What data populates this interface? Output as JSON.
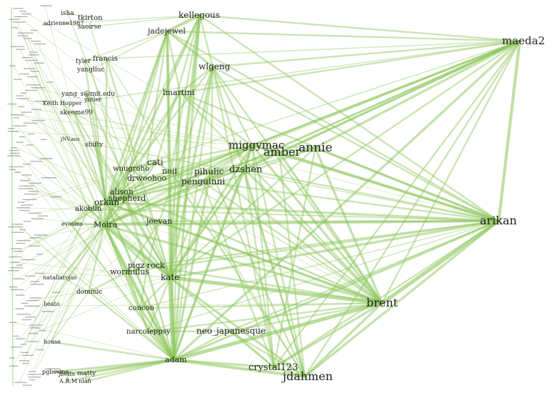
{
  "colors": {
    "edge": "#8cc65a",
    "label": "#222222",
    "minor_label": "#555555"
  },
  "nodes": [
    {
      "id": "maeda2",
      "label": "maeda2"
    },
    {
      "id": "arikan",
      "label": "arikan"
    },
    {
      "id": "brent",
      "label": "brent"
    },
    {
      "id": "kellegous",
      "label": "kellegous"
    },
    {
      "id": "jadejewel",
      "label": "jadejewel"
    },
    {
      "id": "wlgeng",
      "label": "wlgeng"
    },
    {
      "id": "lmartini",
      "label": "lmartini"
    },
    {
      "id": "miggymac",
      "label": "miggymac"
    },
    {
      "id": "amber",
      "label": "amber"
    },
    {
      "id": "annie",
      "label": "annie"
    },
    {
      "id": "dzshen",
      "label": "dzshen"
    },
    {
      "id": "pihulic",
      "label": "pihulic"
    },
    {
      "id": "penguinni",
      "label": "penguinni"
    },
    {
      "id": "cati",
      "label": "cati"
    },
    {
      "id": "noii",
      "label": "noii"
    },
    {
      "id": "wnugroho",
      "label": "wnugroho"
    },
    {
      "id": "drwoohoo",
      "label": "drwoohoo"
    },
    {
      "id": "alison",
      "label": "alison"
    },
    {
      "id": "shepherd",
      "label": "shepherd"
    },
    {
      "id": "orkan",
      "label": "orkan"
    },
    {
      "id": "akoblin",
      "label": "akoblin"
    },
    {
      "id": "evesms",
      "label": "evesms"
    },
    {
      "id": "moira",
      "label": "Moira"
    },
    {
      "id": "jeevan",
      "label": "jeevan"
    },
    {
      "id": "pigzrock",
      "label": "pigz rock"
    },
    {
      "id": "wormulus",
      "label": "wormulus"
    },
    {
      "id": "kate",
      "label": "kate"
    },
    {
      "id": "nataliarojas",
      "label": "nataliarojas"
    },
    {
      "id": "dominic",
      "label": "dominic"
    },
    {
      "id": "beato",
      "label": "beato"
    },
    {
      "id": "concon",
      "label": "concon"
    },
    {
      "id": "narcoleppsy",
      "label": "narcoleppsy"
    },
    {
      "id": "neojapanesque",
      "label": "neo_japanesque"
    },
    {
      "id": "house",
      "label": "house"
    },
    {
      "id": "adam",
      "label": "adam"
    },
    {
      "id": "crystal123",
      "label": "crystal123"
    },
    {
      "id": "jdahmen",
      "label": "jdahmen"
    },
    {
      "id": "pgbovine",
      "label": "pgbovine"
    },
    {
      "id": "jbetts",
      "label": "jbetts"
    },
    {
      "id": "matty",
      "label": "matty"
    },
    {
      "id": "arm",
      "label": "A.R.M"
    },
    {
      "id": "nlafi",
      "label": "nlafi"
    },
    {
      "id": "isha",
      "label": "isha"
    },
    {
      "id": "tkirton",
      "label": "tkirton"
    },
    {
      "id": "adrienne1987",
      "label": "adrienne1987"
    },
    {
      "id": "saoirse",
      "label": "saoirse"
    },
    {
      "id": "francis",
      "label": "francis"
    },
    {
      "id": "tyler",
      "label": "tyler"
    },
    {
      "id": "yangliuc",
      "label": "yangliuc"
    },
    {
      "id": "yangsmit",
      "label": "yang_s@mit.edu"
    },
    {
      "id": "yntler",
      "label": "yntler"
    },
    {
      "id": "keithhopper",
      "label": "Keith Hopper"
    },
    {
      "id": "skeeme99",
      "label": "skeeme99"
    },
    {
      "id": "shifty",
      "label": "shifty"
    },
    {
      "id": "jnvaus",
      "label": "jNV.aus"
    }
  ],
  "edges": [
    [
      "maeda2",
      "arikan",
      4
    ],
    [
      "maeda2",
      "brent",
      2
    ],
    [
      "maeda2",
      "kellegous",
      2
    ],
    [
      "maeda2",
      "jadejewel",
      2
    ],
    [
      "maeda2",
      "wlgeng",
      2
    ],
    [
      "maeda2",
      "miggymac",
      3
    ],
    [
      "maeda2",
      "amber",
      3
    ],
    [
      "maeda2",
      "annie",
      3
    ],
    [
      "maeda2",
      "dzshen",
      2
    ],
    [
      "maeda2",
      "adam",
      3
    ],
    [
      "maeda2",
      "kate",
      2
    ],
    [
      "maeda2",
      "moira",
      2
    ],
    [
      "maeda2",
      "lmartini",
      2
    ],
    [
      "maeda2",
      "orkan",
      2
    ],
    [
      "maeda2",
      "jdahmen",
      2
    ],
    [
      "maeda2",
      "crystal123",
      2
    ],
    [
      "maeda2",
      "penguinni",
      2
    ],
    [
      "maeda2",
      "wnugroho",
      1
    ],
    [
      "maeda2",
      "francis",
      1
    ],
    [
      "maeda2",
      "shepherd",
      1
    ],
    [
      "arikan",
      "brent",
      5
    ],
    [
      "arikan",
      "adam",
      3
    ],
    [
      "arikan",
      "kate",
      3
    ],
    [
      "arikan",
      "miggymac",
      3
    ],
    [
      "arikan",
      "amber",
      3
    ],
    [
      "arikan",
      "annie",
      3
    ],
    [
      "arikan",
      "dzshen",
      2
    ],
    [
      "arikan",
      "moira",
      3
    ],
    [
      "arikan",
      "orkan",
      3
    ],
    [
      "arikan",
      "jeevan",
      2
    ],
    [
      "arikan",
      "pigzrock",
      2
    ],
    [
      "arikan",
      "jdahmen",
      3
    ],
    [
      "arikan",
      "crystal123",
      2
    ],
    [
      "arikan",
      "penguinni",
      2
    ],
    [
      "arikan",
      "wlgeng",
      2
    ],
    [
      "arikan",
      "kellegous",
      2
    ],
    [
      "arikan",
      "jadejewel",
      2
    ],
    [
      "arikan",
      "lmartini",
      2
    ],
    [
      "arikan",
      "neojapanesque",
      2
    ],
    [
      "arikan",
      "evesms",
      1
    ],
    [
      "arikan",
      "akoblin",
      1
    ],
    [
      "arikan",
      "wormulus",
      2
    ],
    [
      "arikan",
      "concon",
      1
    ],
    [
      "arikan",
      "narcoleppsy",
      1
    ],
    [
      "brent",
      "adam",
      5
    ],
    [
      "brent",
      "kate",
      5
    ],
    [
      "brent",
      "miggymac",
      3
    ],
    [
      "brent",
      "amber",
      3
    ],
    [
      "brent",
      "annie",
      3
    ],
    [
      "brent",
      "dzshen",
      3
    ],
    [
      "brent",
      "moira",
      3
    ],
    [
      "brent",
      "orkan",
      3
    ],
    [
      "brent",
      "jdahmen",
      3
    ],
    [
      "brent",
      "crystal123",
      3
    ],
    [
      "brent",
      "neojapanesque",
      2
    ],
    [
      "brent",
      "jeevan",
      2
    ],
    [
      "brent",
      "pihulic",
      2
    ],
    [
      "brent",
      "penguinni",
      2
    ],
    [
      "brent",
      "narcoleppsy",
      2
    ],
    [
      "brent",
      "alison",
      2
    ],
    [
      "brent",
      "wlgeng",
      2
    ],
    [
      "brent",
      "lmartini",
      2
    ],
    [
      "brent",
      "concon",
      2
    ],
    [
      "brent",
      "pigzrock",
      2
    ],
    [
      "adam",
      "kate",
      6
    ],
    [
      "adam",
      "moira",
      4
    ],
    [
      "adam",
      "jdahmen",
      4
    ],
    [
      "adam",
      "crystal123",
      3
    ],
    [
      "adam",
      "matty",
      3
    ],
    [
      "adam",
      "pgbovine",
      3
    ],
    [
      "adam",
      "jbetts",
      2
    ],
    [
      "adam",
      "arm",
      2
    ],
    [
      "adam",
      "nlafi",
      2
    ],
    [
      "adam",
      "narcoleppsy",
      3
    ],
    [
      "adam",
      "concon",
      3
    ],
    [
      "adam",
      "kellegous",
      3
    ],
    [
      "adam",
      "jadejewel",
      3
    ],
    [
      "adam",
      "wlgeng",
      2
    ],
    [
      "adam",
      "miggymac",
      3
    ],
    [
      "adam",
      "dzshen",
      2
    ],
    [
      "adam",
      "pihulic",
      3
    ],
    [
      "adam",
      "orkan",
      3
    ],
    [
      "adam",
      "shepherd",
      2
    ],
    [
      "adam",
      "house",
      2
    ],
    [
      "adam",
      "dominic",
      2
    ],
    [
      "adam",
      "wormulus",
      2
    ],
    [
      "adam",
      "neojapanesque",
      2
    ],
    [
      "adam",
      "evesms",
      2
    ],
    [
      "kate",
      "moira",
      4
    ],
    [
      "kate",
      "orkan",
      3
    ],
    [
      "kate",
      "kellegous",
      4
    ],
    [
      "kate",
      "jadejewel",
      3
    ],
    [
      "kate",
      "wlgeng",
      3
    ],
    [
      "kate",
      "lmartini",
      3
    ],
    [
      "kate",
      "miggymac",
      3
    ],
    [
      "kate",
      "annie",
      2
    ],
    [
      "kate",
      "dzshen",
      2
    ],
    [
      "kate",
      "pihulic",
      2
    ],
    [
      "kate",
      "jdahmen",
      3
    ],
    [
      "kate",
      "crystal123",
      2
    ],
    [
      "kate",
      "concon",
      2
    ],
    [
      "kate",
      "narcoleppsy",
      2
    ],
    [
      "kate",
      "akoblin",
      2
    ],
    [
      "kate",
      "shifty",
      2
    ],
    [
      "kate",
      "francis",
      2
    ],
    [
      "kate",
      "yangsmit",
      2
    ],
    [
      "kate",
      "skeeme99",
      2
    ],
    [
      "kellegous",
      "jadejewel",
      4
    ],
    [
      "kellegous",
      "moira",
      3
    ],
    [
      "kellegous",
      "orkan",
      2
    ],
    [
      "kellegous",
      "cati",
      2
    ],
    [
      "kellegous",
      "adrienne1987",
      1
    ],
    [
      "kellegous",
      "saoirse",
      1
    ],
    [
      "kellegous",
      "wlgeng",
      2
    ],
    [
      "kellegous",
      "noii",
      2
    ],
    [
      "jadejewel",
      "wlgeng",
      3
    ],
    [
      "jadejewel",
      "orkan",
      3
    ],
    [
      "jadejewel",
      "moira",
      2
    ],
    [
      "jadejewel",
      "alison",
      2
    ],
    [
      "jadejewel",
      "lmartini",
      2
    ],
    [
      "jadejewel",
      "drwoohoo",
      2
    ],
    [
      "jadejewel",
      "tyler",
      1
    ],
    [
      "jadejewel",
      "yangliuc",
      1
    ],
    [
      "wlgeng",
      "orkan",
      2
    ],
    [
      "wlgeng",
      "miggymac",
      2
    ],
    [
      "wlgeng",
      "lmartini",
      2
    ],
    [
      "wlgeng",
      "pihulic",
      2
    ],
    [
      "wlgeng",
      "jdahmen",
      2
    ],
    [
      "wlgeng",
      "crystal123",
      2
    ],
    [
      "wlgeng",
      "jeevan",
      2
    ],
    [
      "lmartini",
      "orkan",
      2
    ],
    [
      "lmartini",
      "miggymac",
      2
    ],
    [
      "lmartini",
      "adam",
      2
    ],
    [
      "lmartini",
      "moira",
      2
    ],
    [
      "miggymac",
      "amber",
      3
    ],
    [
      "miggymac",
      "annie",
      2
    ],
    [
      "miggymac",
      "dzshen",
      3
    ],
    [
      "miggymac",
      "pihulic",
      2
    ],
    [
      "miggymac",
      "penguinni",
      2
    ],
    [
      "miggymac",
      "orkan",
      2
    ],
    [
      "miggymac",
      "moira",
      2
    ],
    [
      "miggymac",
      "jdahmen",
      2
    ],
    [
      "miggymac",
      "crystal123",
      2
    ],
    [
      "miggymac",
      "alison",
      2
    ],
    [
      "miggymac",
      "wnugroho",
      2
    ],
    [
      "miggymac",
      "noii",
      2
    ],
    [
      "amber",
      "annie",
      3
    ],
    [
      "amber",
      "dzshen",
      2
    ],
    [
      "amber",
      "jdahmen",
      2
    ],
    [
      "amber",
      "moira",
      2
    ],
    [
      "amber",
      "orkan",
      2
    ],
    [
      "annie",
      "dzshen",
      2
    ],
    [
      "annie",
      "crystal123",
      2
    ],
    [
      "annie",
      "moira",
      2
    ],
    [
      "dzshen",
      "pihulic",
      2
    ],
    [
      "dzshen",
      "penguinni",
      2
    ],
    [
      "dzshen",
      "jdahmen",
      2
    ],
    [
      "dzshen",
      "crystal123",
      2
    ],
    [
      "dzshen",
      "orkan",
      2
    ],
    [
      "dzshen",
      "kate",
      2
    ],
    [
      "pihulic",
      "penguinni",
      2
    ],
    [
      "pihulic",
      "orkan",
      2
    ],
    [
      "pihulic",
      "jdahmen",
      2
    ],
    [
      "pihulic",
      "drwoohoo",
      2
    ],
    [
      "penguinni",
      "crystal123",
      2
    ],
    [
      "penguinni",
      "moira",
      2
    ],
    [
      "penguinni",
      "orkan",
      2
    ],
    [
      "cati",
      "noii",
      2
    ],
    [
      "cati",
      "wnugroho",
      2
    ],
    [
      "cati",
      "drwoohoo",
      2
    ],
    [
      "cati",
      "orkan",
      2
    ],
    [
      "noii",
      "drwoohoo",
      2
    ],
    [
      "noii",
      "alison",
      2
    ],
    [
      "noii",
      "jdahmen",
      2
    ],
    [
      "wnugroho",
      "drwoohoo",
      2
    ],
    [
      "wnugroho",
      "alison",
      2
    ],
    [
      "wnugroho",
      "orkan",
      2
    ],
    [
      "drwoohoo",
      "alison",
      2
    ],
    [
      "drwoohoo",
      "moira",
      2
    ],
    [
      "alison",
      "shepherd",
      3
    ],
    [
      "alison",
      "orkan",
      2
    ],
    [
      "alison",
      "moira",
      2
    ],
    [
      "shepherd",
      "orkan",
      3
    ],
    [
      "shepherd",
      "moira",
      2
    ],
    [
      "shepherd",
      "akoblin",
      2
    ],
    [
      "orkan",
      "akoblin",
      2
    ],
    [
      "orkan",
      "moira",
      3
    ],
    [
      "orkan",
      "jeevan",
      2
    ],
    [
      "orkan",
      "evesms",
      2
    ],
    [
      "orkan",
      "tyler",
      2
    ],
    [
      "orkan",
      "francis",
      2
    ],
    [
      "orkan",
      "yangsmit",
      2
    ],
    [
      "orkan",
      "yntler",
      2
    ],
    [
      "orkan",
      "keithhopper",
      1
    ],
    [
      "orkan",
      "skeeme99",
      2
    ],
    [
      "orkan",
      "shifty",
      2
    ],
    [
      "orkan",
      "jnvaus",
      1
    ],
    [
      "akoblin",
      "evesms",
      2
    ],
    [
      "akoblin",
      "moira",
      2
    ],
    [
      "moira",
      "evesms",
      2
    ],
    [
      "moira",
      "jeevan",
      2
    ],
    [
      "moira",
      "pigzrock",
      3
    ],
    [
      "moira",
      "wormulus",
      3
    ],
    [
      "moira",
      "dominic",
      2
    ],
    [
      "moira",
      "nataliarojas",
      2
    ],
    [
      "moira",
      "concon",
      2
    ],
    [
      "moira",
      "narcoleppsy",
      2
    ],
    [
      "moira",
      "beato",
      1
    ],
    [
      "moira",
      "house",
      1
    ],
    [
      "jeevan",
      "pigzrock",
      2
    ],
    [
      "jeevan",
      "wormulus",
      2
    ],
    [
      "pigzrock",
      "wormulus",
      3
    ],
    [
      "pigzrock",
      "concon",
      2
    ],
    [
      "wormulus",
      "concon",
      2
    ],
    [
      "wormulus",
      "dominic",
      2
    ],
    [
      "concon",
      "narcoleppsy",
      2
    ],
    [
      "narcoleppsy",
      "neojapanesque",
      2
    ],
    [
      "neojapanesque",
      "crystal123",
      2
    ],
    [
      "neojapanesque",
      "jdahmen",
      2
    ],
    [
      "crystal123",
      "jdahmen",
      3
    ],
    [
      "dominic",
      "house",
      1
    ],
    [
      "dominic",
      "nataliarojas",
      1
    ],
    [
      "pgbovine",
      "matty",
      2
    ],
    [
      "jbetts",
      "arm",
      2
    ],
    [
      "matty",
      "nlafi",
      2
    ],
    [
      "isha",
      "tkirton",
      1
    ],
    [
      "tkirton",
      "saoirse",
      1
    ],
    [
      "adrienne1987",
      "saoirse",
      1
    ],
    [
      "francis",
      "tyler",
      1
    ],
    [
      "tyler",
      "yangliuc",
      1
    ],
    [
      "yangsmit",
      "yntler",
      1
    ],
    [
      "keithhopper",
      "skeeme99",
      1
    ],
    [
      "isha",
      "kate",
      1
    ],
    [
      "saoirse",
      "kate",
      1
    ],
    [
      "francis",
      "jdahmen",
      1
    ],
    [
      "yangliuc",
      "adam",
      1
    ],
    [
      "skeeme99",
      "brent",
      1
    ],
    [
      "shifty",
      "arikan",
      1
    ],
    [
      "yntler",
      "maeda2",
      1
    ]
  ],
  "minor_edge_count": 140
}
